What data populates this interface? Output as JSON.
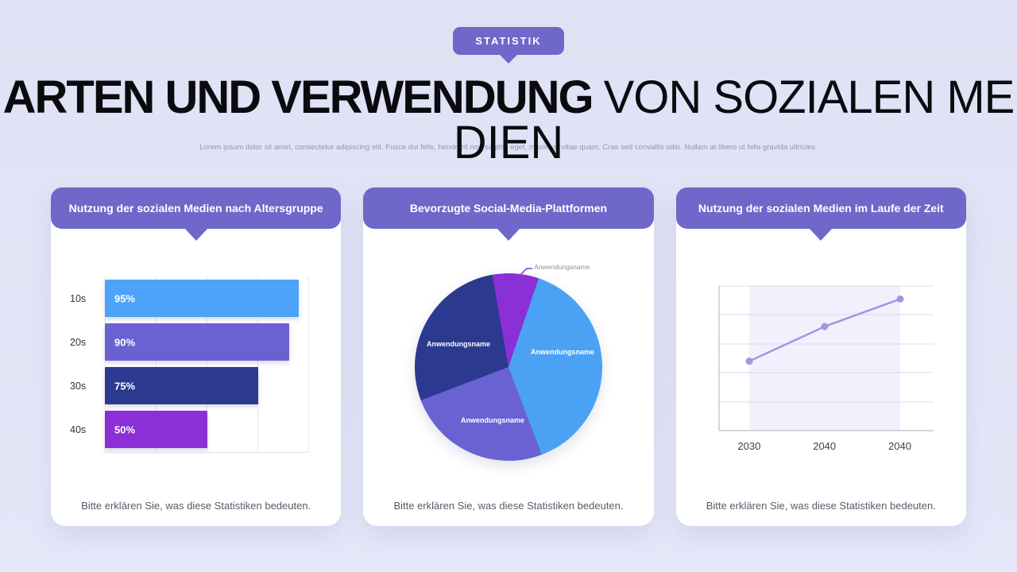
{
  "badge": {
    "label": "STATISTIK"
  },
  "title": {
    "line1_bold": "ARTEN UND VERWENDUNG",
    "line1_light": "VON SOZIALEN ME",
    "line2": "DIEN"
  },
  "subtitle": "Lorem ipsum dolor sit amet, consectetur adipiscing elit. Fusce dui felis, hendrerit non sagittis eget, maximus vitae quam. Cras sed convallis odio. Nullam at libero ut felis gravida ultricies.",
  "cards": [
    {
      "title": "Nutzung der sozialen Medien nach Altersgruppe",
      "caption": "Bitte erklären Sie, was diese Statistiken bedeuten."
    },
    {
      "title": "Bevorzugte Social-Media-Plattformen",
      "caption": "Bitte erklären Sie, was diese Statistiken bedeuten."
    },
    {
      "title": "Nutzung der sozialen Medien im Laufe der Zeit",
      "caption": "Bitte erklären Sie, was diese Statistiken bedeuten."
    }
  ],
  "chart_data": [
    {
      "type": "bar",
      "orientation": "horizontal",
      "title": "Nutzung der sozialen Medien nach Altersgruppe",
      "categories": [
        "10s",
        "20s",
        "30s",
        "40s"
      ],
      "values": [
        95,
        90,
        75,
        50
      ],
      "value_labels": [
        "95%",
        "90%",
        "75%",
        "50%"
      ],
      "colors": [
        "#4da3f7",
        "#6a62d2",
        "#2b3a8f",
        "#8b2fd6"
      ],
      "xlim": [
        0,
        100
      ],
      "grid": "vertical"
    },
    {
      "type": "pie",
      "title": "Bevorzugte Social-Media-Plattformen",
      "labels": [
        "Anwendungsname",
        "Anwendungsname",
        "Anwendungsname",
        "Anwendungsname"
      ],
      "values": [
        8,
        39,
        25,
        28
      ],
      "colors": [
        "#8b2fd6",
        "#4ba2f5",
        "#6a62d2",
        "#2b3a8f"
      ],
      "start_angle_deg": -10
    },
    {
      "type": "line",
      "title": "Nutzung der sozialen Medien im Laufe der Zeit",
      "x_labels": [
        "2030",
        "2040",
        "2040"
      ],
      "values": [
        48,
        72,
        91
      ],
      "ylim": [
        0,
        100
      ],
      "color": "#a395e3",
      "band_color": "#ede9fb",
      "grid": "horizontal"
    }
  ]
}
